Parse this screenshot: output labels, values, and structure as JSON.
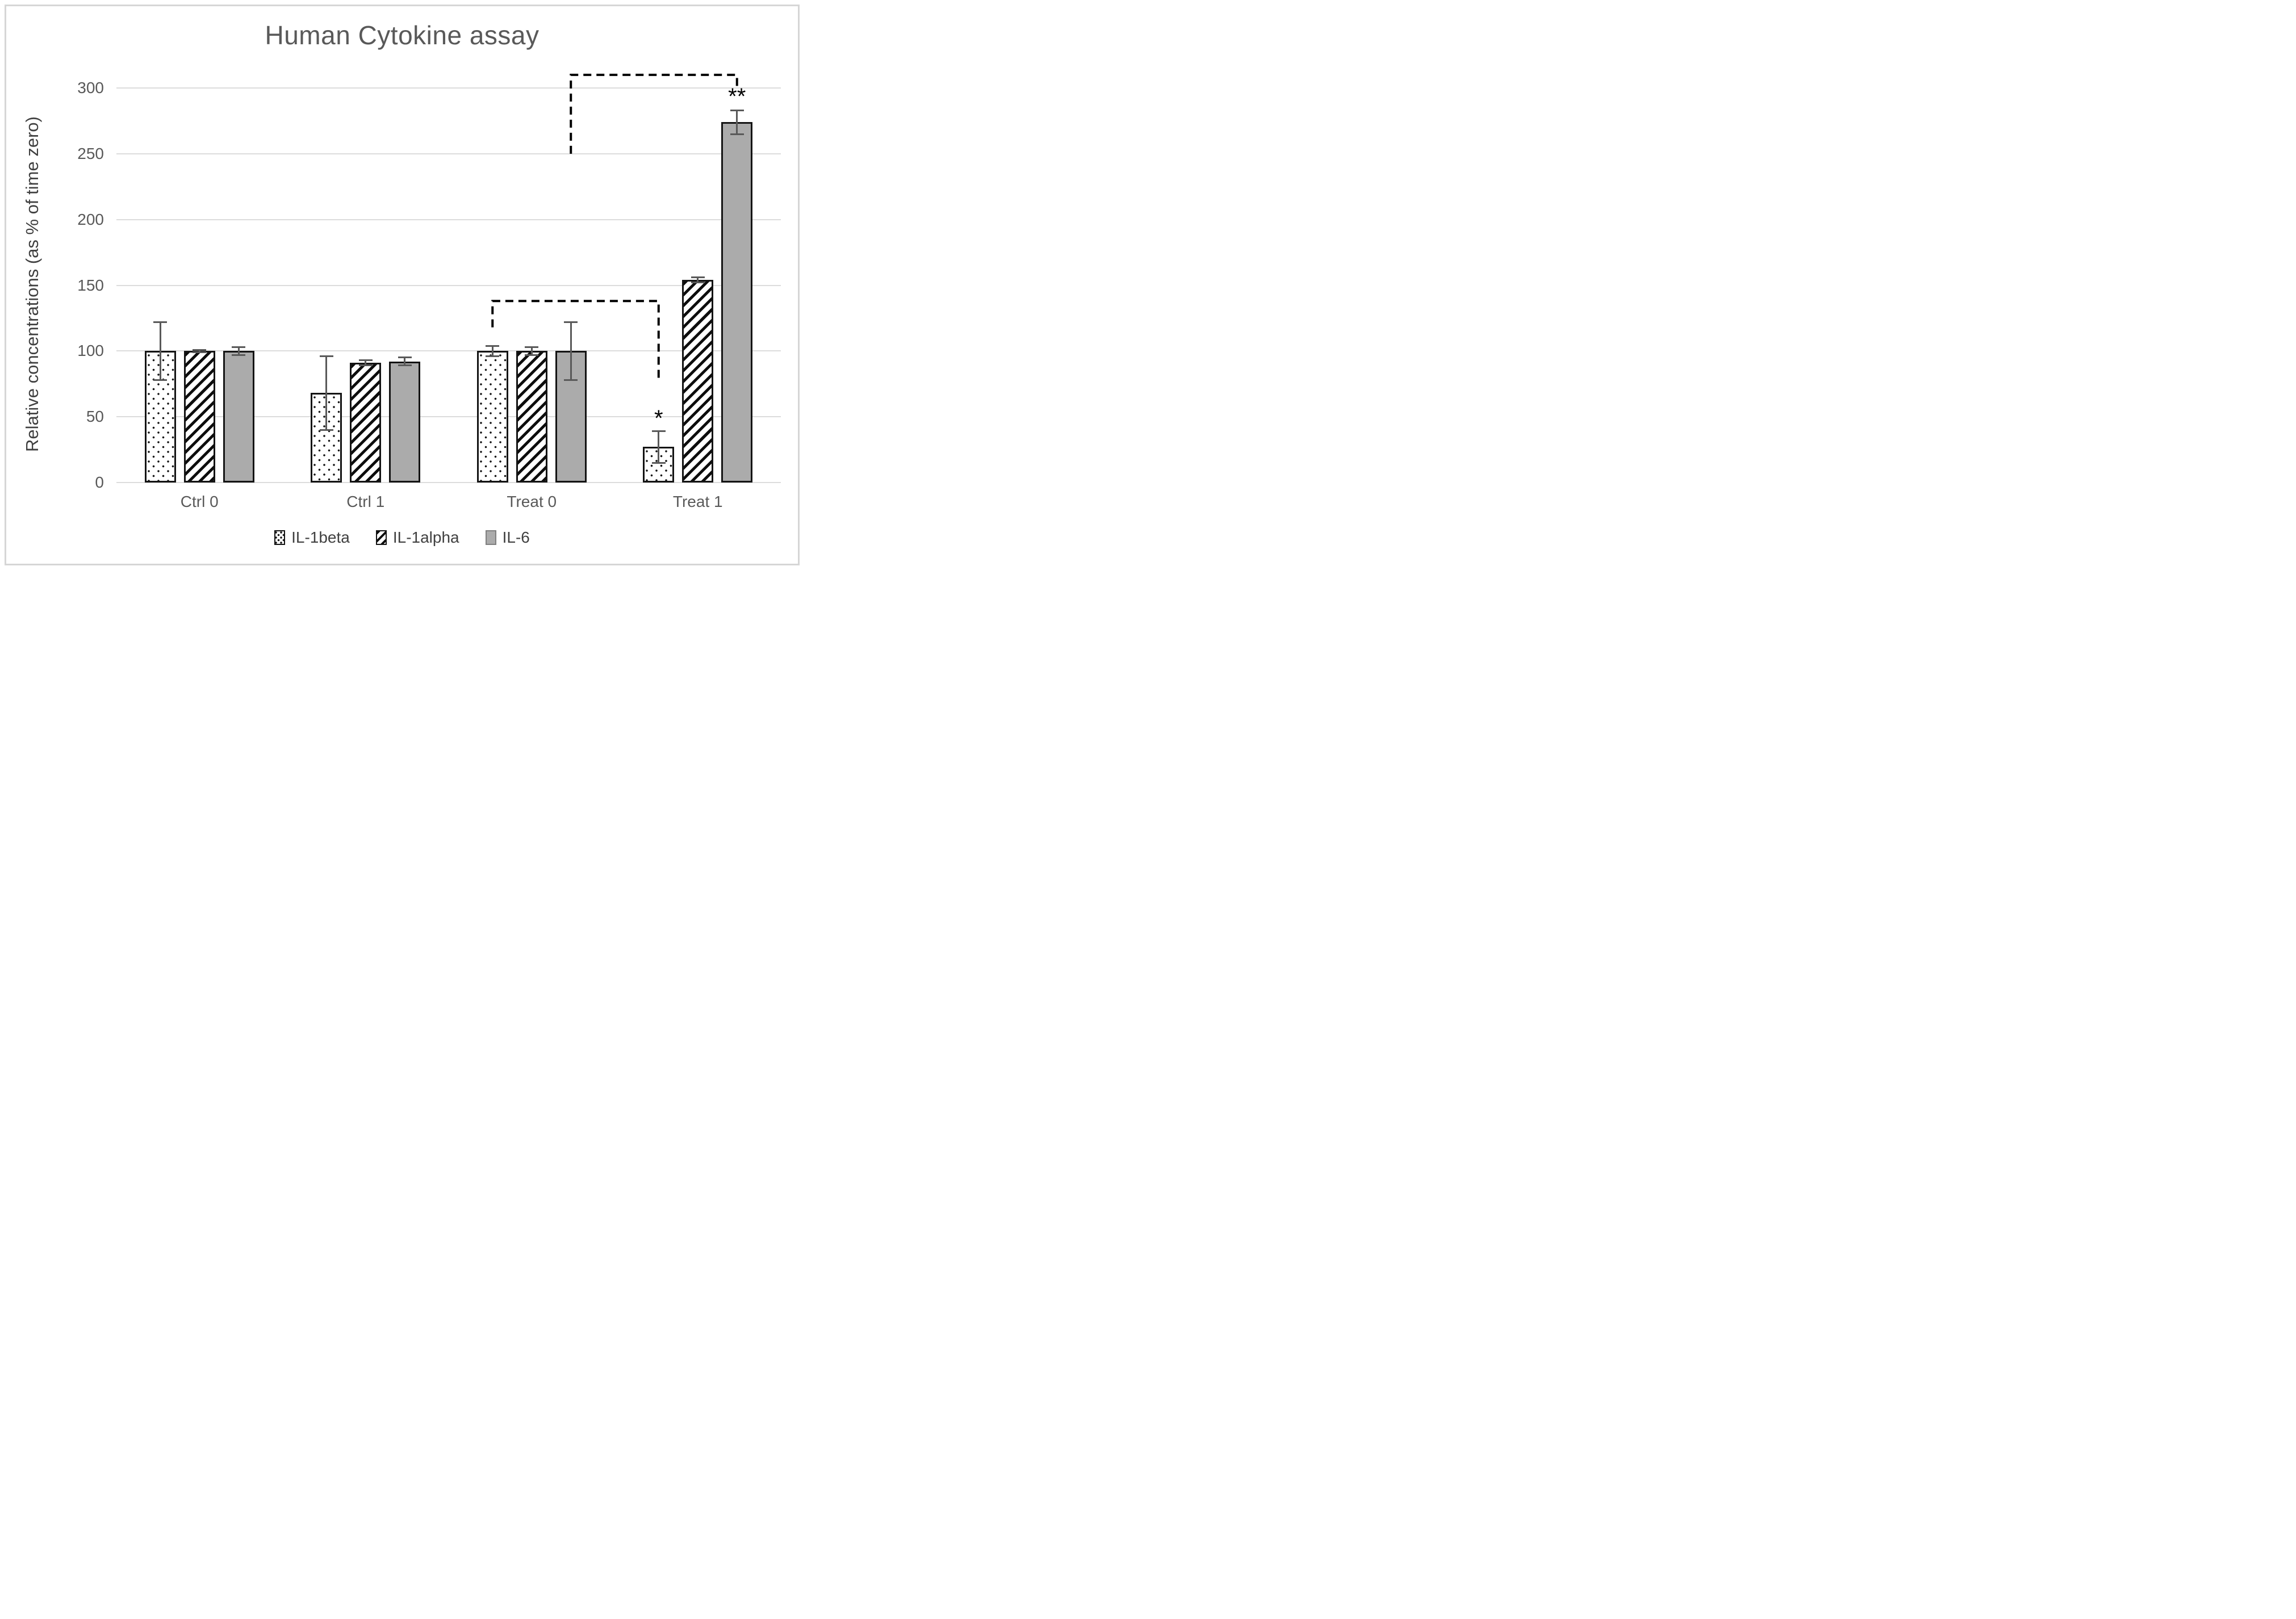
{
  "colors": {
    "background": "#ffffff",
    "frame_border": "#d6d6d6",
    "text": "#595959",
    "axis_text": "#404040",
    "gridline": "#dcdcdc",
    "bar_border": "#141414",
    "il6_fill": "#ababab",
    "error_bar": "#595959",
    "bracket": "#000000"
  },
  "chart_data": {
    "type": "bar",
    "title": "Human Cytokine assay",
    "xlabel": "",
    "ylabel": "Relative concentrations (as % of time zero)",
    "ylim": [
      0,
      300
    ],
    "ytick_step": 50,
    "grid": true,
    "legend_position": "bottom",
    "categories": [
      "Ctrl 0",
      "Ctrl 1",
      "Treat 0",
      "Treat 1"
    ],
    "series": [
      {
        "name": "IL-1beta",
        "pattern": "dots",
        "values": [
          100,
          68,
          100,
          27
        ],
        "errors": [
          22,
          28,
          4,
          12
        ]
      },
      {
        "name": "IL-1alpha",
        "pattern": "diagonal-hatch",
        "values": [
          100,
          91,
          100,
          154
        ],
        "errors": [
          1,
          2,
          3,
          2
        ]
      },
      {
        "name": "IL-6",
        "pattern": "solid",
        "values": [
          100,
          92,
          100,
          274
        ],
        "errors": [
          3,
          3,
          22,
          9
        ]
      }
    ],
    "annotations": [
      {
        "text": "*",
        "category": "Treat 1",
        "series": "IL-1beta",
        "y": 46
      },
      {
        "text": "**",
        "category": "Treat 1",
        "series": "IL-6",
        "y": 291
      }
    ],
    "significance_brackets": [
      {
        "from": {
          "category": "Treat 0",
          "series": "IL-1beta",
          "y": 118
        },
        "top": 138,
        "to": {
          "category": "Treat 1",
          "series": "IL-1beta",
          "y": 77
        }
      },
      {
        "from": {
          "category": "Treat 0",
          "series": "IL-6",
          "y": 250
        },
        "top": 310,
        "to": {
          "category": "Treat 1",
          "series": "IL-6",
          "y": 298
        }
      }
    ]
  }
}
